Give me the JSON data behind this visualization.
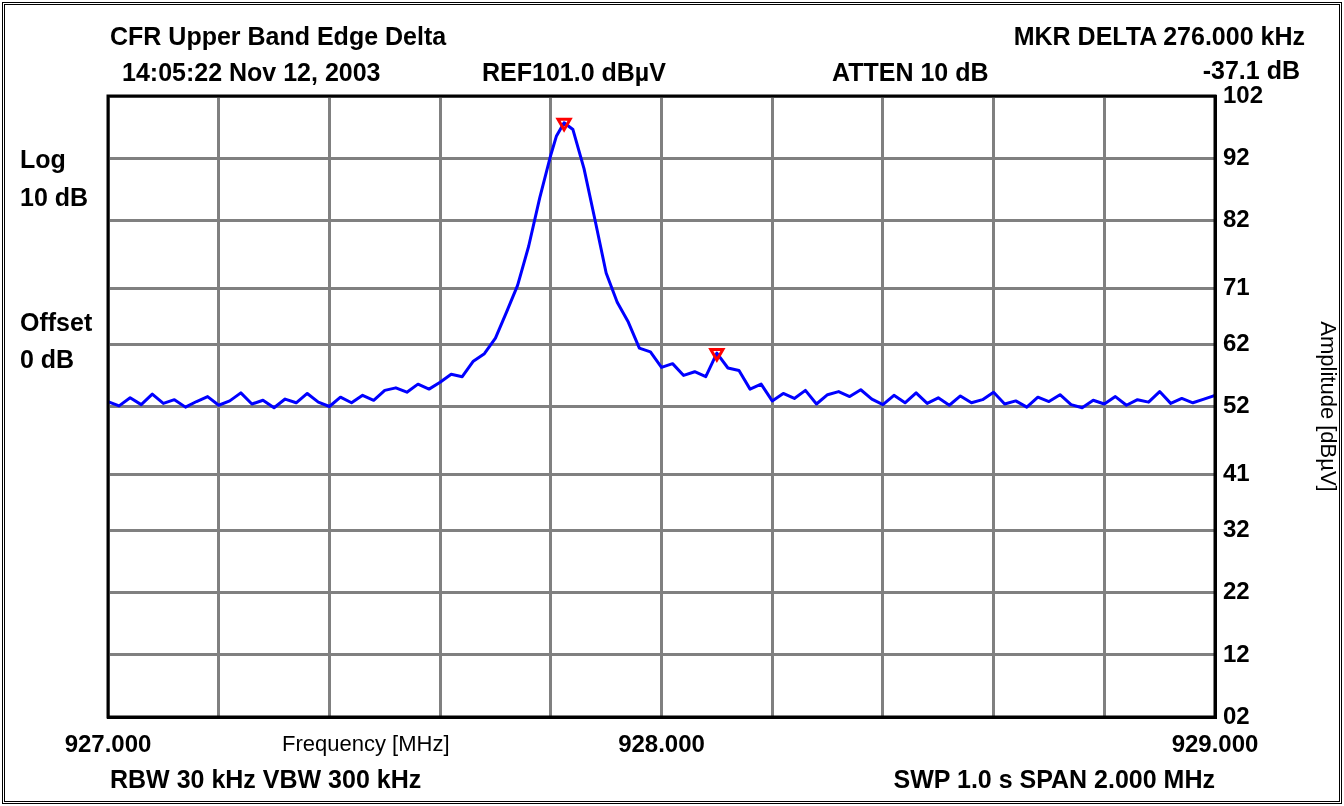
{
  "chart_data": {
    "type": "line",
    "title": "CFR Upper Band Edge Delta",
    "xlabel": "Frequency [MHz]",
    "ylabel": "Amplitude [dBµV]",
    "annotations": [
      "MKR DELTA 276.000 kHz",
      "14:05:22 Nov 12, 2003",
      "REF101.0 dBµV",
      "ATTEN 10 dB",
      "-37.1 dB",
      "Log",
      "10 dB",
      "Offset",
      "0 dB",
      "RBW 30 kHz  VBW 300 kHz",
      "SWP 1.0 s  SPAN 2.000 MHz"
    ],
    "xlim": [
      927,
      929
    ],
    "xticks": [
      {
        "value": 927,
        "label": "927.000"
      },
      {
        "value": 927.2,
        "label": null
      },
      {
        "value": 927.4,
        "label": null
      },
      {
        "value": 927.6,
        "label": null
      },
      {
        "value": 927.8,
        "label": null
      },
      {
        "value": 928,
        "label": "928.000"
      },
      {
        "value": 928.2,
        "label": null
      },
      {
        "value": 928.4,
        "label": null
      },
      {
        "value": 928.6,
        "label": null
      },
      {
        "value": 928.8,
        "label": null
      },
      {
        "value": 929,
        "label": "929.000"
      }
    ],
    "ylim": [
      2,
      102
    ],
    "yticks": [
      {
        "value": 2,
        "label": "02"
      },
      12,
      22,
      32,
      41,
      52,
      62,
      71,
      82,
      92,
      102
    ],
    "grid": true,
    "series": [
      {
        "color": "#0000ff",
        "marker": "none",
        "x": [
          927.0,
          927.02,
          927.04,
          927.06,
          927.08,
          927.1,
          927.12,
          927.14,
          927.16,
          927.18,
          927.2,
          927.22,
          927.24,
          927.26,
          927.28,
          927.3,
          927.32,
          927.34,
          927.36,
          927.38,
          927.4,
          927.42,
          927.44,
          927.46,
          927.48,
          927.5,
          927.52,
          927.54,
          927.56,
          927.58,
          927.6,
          927.62,
          927.64,
          927.66,
          927.68,
          927.7,
          927.72,
          927.74,
          927.76,
          927.78,
          927.8,
          927.81,
          927.824,
          927.84,
          927.86,
          927.88,
          927.9,
          927.92,
          927.94,
          927.96,
          927.98,
          928.0,
          928.02,
          928.04,
          928.06,
          928.08,
          928.1,
          928.12,
          928.14,
          928.16,
          928.18,
          928.2,
          928.22,
          928.24,
          928.26,
          928.28,
          928.3,
          928.32,
          928.34,
          928.36,
          928.38,
          928.4,
          928.42,
          928.44,
          928.46,
          928.48,
          928.5,
          928.52,
          928.54,
          928.56,
          928.58,
          928.6,
          928.62,
          928.64,
          928.66,
          928.68,
          928.7,
          928.72,
          928.74,
          928.76,
          928.78,
          928.8,
          928.82,
          928.84,
          928.86,
          928.88,
          928.9,
          928.92,
          928.94,
          928.96,
          928.98,
          929.0
        ],
        "values": [
          52.8,
          52.1,
          53.4,
          52.3,
          54.0,
          52.5,
          53.1,
          51.9,
          52.8,
          53.6,
          52.2,
          52.9,
          54.2,
          52.4,
          53.0,
          51.8,
          53.2,
          52.6,
          54.1,
          52.7,
          52.0,
          53.5,
          52.6,
          53.8,
          53.0,
          54.6,
          55.0,
          54.3,
          55.6,
          54.8,
          55.9,
          57.2,
          56.8,
          59.3,
          60.5,
          63.0,
          67.2,
          71.5,
          77.8,
          85.6,
          92.5,
          95.5,
          97.7,
          96.6,
          90.3,
          82.0,
          73.5,
          68.8,
          65.6,
          61.4,
          60.8,
          58.3,
          58.9,
          57.0,
          57.6,
          56.8,
          60.6,
          58.2,
          57.8,
          54.8,
          55.6,
          52.9,
          54.1,
          53.3,
          54.6,
          52.4,
          53.9,
          54.4,
          53.6,
          54.7,
          53.2,
          52.3,
          53.8,
          52.6,
          54.2,
          52.5,
          53.4,
          52.2,
          53.7,
          52.6,
          53.1,
          54.3,
          52.4,
          52.9,
          51.9,
          53.5,
          52.8,
          53.9,
          52.3,
          51.8,
          53.0,
          52.4,
          53.6,
          52.2,
          53.1,
          52.7,
          54.4,
          52.5,
          53.3,
          52.6,
          53.2,
          53.8
        ]
      },
      {
        "type": "scatter",
        "color": "#ff0000",
        "marker": "triangle",
        "x": [
          927.824,
          928.1
        ],
        "values": [
          97.7,
          60.6
        ]
      }
    ]
  }
}
